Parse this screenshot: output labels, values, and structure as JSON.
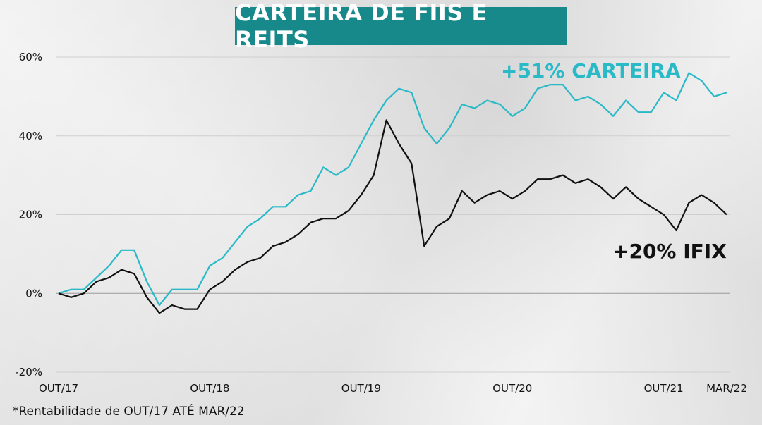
{
  "title": "CARTEIRA DE FIIS E REITS",
  "footnote": "*Rentabilidade de OUT/17 ATÉ MAR/22",
  "colors": {
    "title_bg": "#17898b",
    "carteira": "#29b9c7",
    "ifix": "#111111",
    "grid": "#cfcfcf"
  },
  "chart_data": {
    "type": "line",
    "title": "CARTEIRA DE FIIS E REITS",
    "xlabel": "",
    "ylabel": "",
    "ylim": [
      -20,
      60
    ],
    "yticks": [
      60,
      40,
      20,
      0,
      -20
    ],
    "ytick_labels": [
      "60%",
      "40%",
      "20%",
      "0%",
      "-20%"
    ],
    "xtick_labels": [
      {
        "label": "OUT/17",
        "index": 0
      },
      {
        "label": "OUT/18",
        "index": 12
      },
      {
        "label": "OUT/19",
        "index": 24
      },
      {
        "label": "OUT/20",
        "index": 36
      },
      {
        "label": "OUT/21",
        "index": 48
      },
      {
        "label": "MAR/22",
        "index": 53
      }
    ],
    "grid": true,
    "series": [
      {
        "name": "CARTEIRA",
        "annotation": "+51% CARTEIRA",
        "values": [
          0,
          1,
          1,
          4,
          7,
          11,
          11,
          3,
          -3,
          1,
          1,
          1,
          7,
          9,
          13,
          17,
          19,
          22,
          22,
          25,
          26,
          32,
          30,
          32,
          38,
          44,
          49,
          52,
          51,
          42,
          38,
          42,
          48,
          47,
          49,
          48,
          45,
          47,
          52,
          53,
          53,
          49,
          50,
          48,
          45,
          49,
          46,
          46,
          51,
          49,
          56,
          54,
          50,
          51
        ]
      },
      {
        "name": "IFIX",
        "annotation": "+20% IFIX",
        "values": [
          0,
          -1,
          0,
          3,
          4,
          6,
          5,
          -1,
          -5,
          -3,
          -4,
          -4,
          1,
          3,
          6,
          8,
          9,
          12,
          13,
          15,
          18,
          19,
          19,
          21,
          25,
          30,
          44,
          38,
          33,
          12,
          17,
          19,
          26,
          23,
          25,
          26,
          24,
          26,
          29,
          29,
          30,
          28,
          29,
          27,
          24,
          27,
          24,
          22,
          20,
          16,
          23,
          25,
          23,
          20
        ]
      }
    ]
  }
}
